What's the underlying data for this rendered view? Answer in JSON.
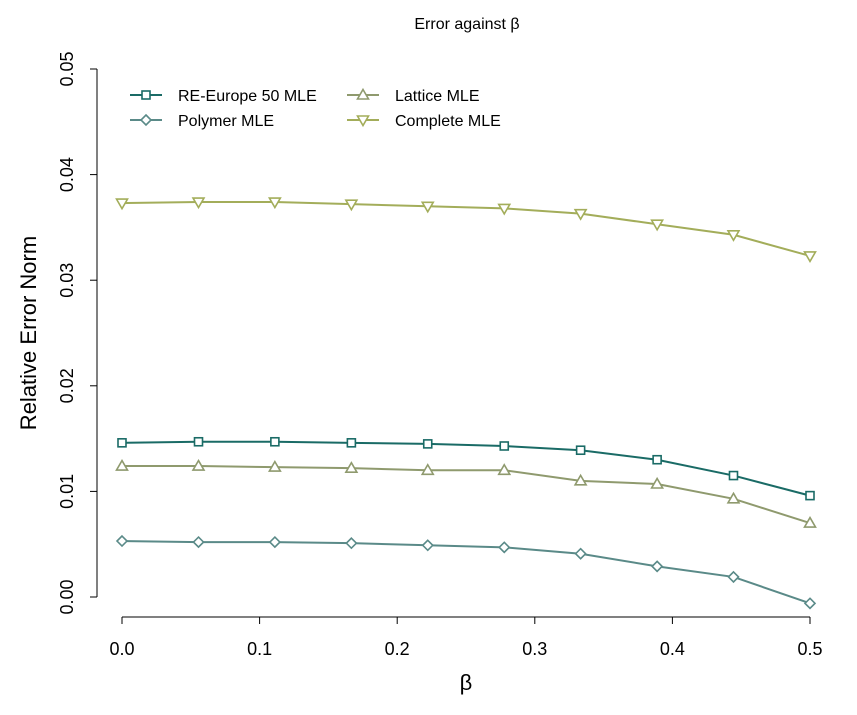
{
  "chart_data": {
    "type": "line",
    "title": "Error against β",
    "xlabel": "β",
    "ylabel": "Relative Error Norm",
    "xlim": [
      0.0,
      0.5
    ],
    "ylim": [
      0.0,
      0.05
    ],
    "xticks": [
      "0.0",
      "0.1",
      "0.2",
      "0.3",
      "0.4",
      "0.5"
    ],
    "yticks": [
      "0.00",
      "0.01",
      "0.02",
      "0.03",
      "0.04",
      "0.05"
    ],
    "grid": false,
    "legend_position": "top-left",
    "x": [
      0.0,
      0.0556,
      0.1111,
      0.1667,
      0.2222,
      0.2778,
      0.3333,
      0.3889,
      0.4444,
      0.5
    ],
    "series": [
      {
        "name": "RE-Europe 50 MLE",
        "marker": "square",
        "color": "#1a6b66",
        "values": [
          0.0146,
          0.0147,
          0.0147,
          0.0146,
          0.0145,
          0.0143,
          0.0139,
          0.013,
          0.0115,
          0.0096
        ]
      },
      {
        "name": "Polymer MLE",
        "marker": "diamond",
        "color": "#5a8a88",
        "values": [
          0.0053,
          0.0052,
          0.0052,
          0.0051,
          0.0049,
          0.0047,
          0.0041,
          0.0029,
          0.0019,
          -0.0006
        ]
      },
      {
        "name": "Lattice MLE",
        "marker": "triangle-up",
        "color": "#8f9a6e",
        "values": [
          0.0124,
          0.0124,
          0.0123,
          0.0122,
          0.012,
          0.012,
          0.011,
          0.0107,
          0.0093,
          0.007
        ]
      },
      {
        "name": "Complete MLE",
        "marker": "triangle-down",
        "color": "#a3ad5a",
        "values": [
          0.0373,
          0.0374,
          0.0374,
          0.0372,
          0.037,
          0.0368,
          0.0363,
          0.0353,
          0.0343,
          0.0323
        ]
      }
    ]
  }
}
